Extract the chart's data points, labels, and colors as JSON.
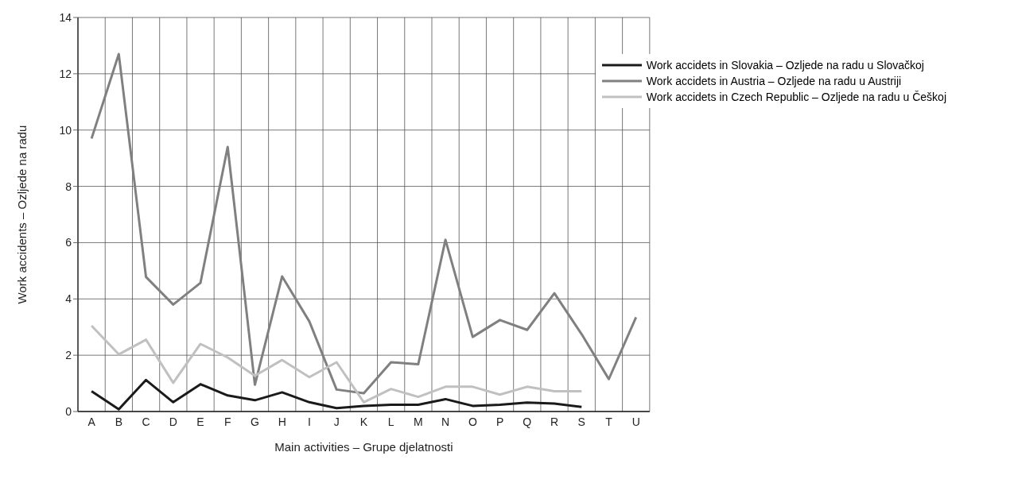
{
  "chart_data": {
    "type": "line",
    "xlabel": "Main activities – Grupe djelatnosti",
    "ylabel": "Work accidents  – Ozljede na radu",
    "categories": [
      "A",
      "B",
      "C",
      "D",
      "E",
      "F",
      "G",
      "H",
      "I",
      "J",
      "K",
      "L",
      "M",
      "N",
      "O",
      "P",
      "Q",
      "R",
      "S",
      "T",
      "U"
    ],
    "series": [
      {
        "name": "Work accidets in Slovakia – Ozljede na radu u Slovačkoj",
        "color": "#1a1a1a",
        "values": [
          0.72,
          0.08,
          1.12,
          0.33,
          0.97,
          0.57,
          0.4,
          0.68,
          0.33,
          0.12,
          0.2,
          0.24,
          0.24,
          0.44,
          0.2,
          0.24,
          0.32,
          0.28,
          0.16,
          null,
          null
        ]
      },
      {
        "name": "Work accidets in Austria – Ozljede na radu u Austriji",
        "color": "#808080",
        "values": [
          9.7,
          12.7,
          4.78,
          3.8,
          4.57,
          9.4,
          0.95,
          4.8,
          3.2,
          0.78,
          0.65,
          1.75,
          1.68,
          6.1,
          2.65,
          3.25,
          2.9,
          4.2,
          2.75,
          1.15,
          3.35
        ]
      },
      {
        "name": "Work accidets in Czech Republic – Ozljede na radu u Češkoj",
        "color": "#c0c0c0",
        "values": [
          3.05,
          2.03,
          2.55,
          1.02,
          2.4,
          1.92,
          1.27,
          1.83,
          1.22,
          1.75,
          0.33,
          0.8,
          0.52,
          0.88,
          0.88,
          0.6,
          0.88,
          0.72,
          0.72,
          null,
          null
        ]
      }
    ],
    "ylim": [
      0,
      14
    ],
    "yticks": [
      0,
      2,
      4,
      6,
      8,
      10,
      12,
      14
    ],
    "grid": true,
    "legend": "top right",
    "marker": "none",
    "line_style": "solid"
  }
}
